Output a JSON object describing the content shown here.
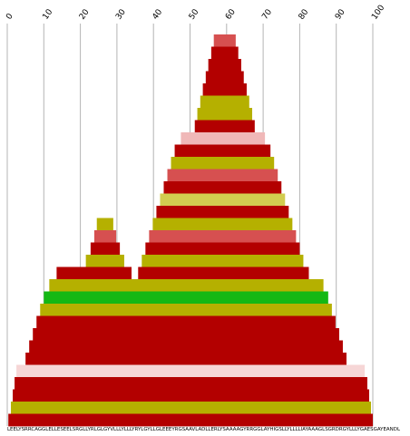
{
  "chart_data": {
    "type": "area",
    "title": "",
    "xlabel": "",
    "ylabel": "",
    "xlim": [
      0,
      100
    ],
    "x_ticks": [
      {
        "value": 0,
        "label": "0"
      },
      {
        "value": 10,
        "label": "10"
      },
      {
        "value": 20,
        "label": "20"
      },
      {
        "value": 30,
        "label": "30"
      },
      {
        "value": 40,
        "label": "40"
      },
      {
        "value": 50,
        "label": "50"
      },
      {
        "value": 60,
        "label": "60"
      },
      {
        "value": 70,
        "label": "70"
      },
      {
        "value": 80,
        "label": "80"
      },
      {
        "value": 90,
        "label": "90"
      },
      {
        "value": 100,
        "label": "100"
      }
    ],
    "grid": true,
    "legend": "none",
    "colors": {
      "red": "#b30000",
      "olive": "#b5b000",
      "salmon": "#d65050",
      "light_pink": "#f0b8b8",
      "pale_pink": "#f6d6d6",
      "khaki": "#d2cc50",
      "green": "#14b814",
      "grid": "#b4b4b4"
    },
    "sequence_label": "LEELYSRRCAGGLELLESEELSRGLLYRLGLGYVLLLYLLLYRYLGYLLGLEEEYRGSAAVLADLLERLYSAAAAGYRRGGLAYHIGSLLYLLLLIAYAAAGLSGRDRGYLLLYGAESGAYEANDL",
    "bands": [
      {
        "color": "#d65050",
        "segments": [
          [
            56.5,
            62.5
          ]
        ]
      },
      {
        "color": "#b30000",
        "segments": [
          [
            55.8,
            63.2
          ]
        ]
      },
      {
        "color": "#b30000",
        "segments": [
          [
            55.0,
            64.0
          ]
        ]
      },
      {
        "color": "#b30000",
        "segments": [
          [
            54.3,
            64.7
          ]
        ]
      },
      {
        "color": "#b30000",
        "segments": [
          [
            53.5,
            65.5
          ]
        ]
      },
      {
        "color": "#b5b000",
        "segments": [
          [
            52.8,
            66.2
          ]
        ]
      },
      {
        "color": "#b5b000",
        "segments": [
          [
            52.0,
            67.0
          ]
        ]
      },
      {
        "color": "#b30000",
        "segments": [
          [
            51.3,
            67.7
          ]
        ]
      },
      {
        "color": "#f0b8b8",
        "segments": [
          [
            47.5,
            70.5
          ]
        ]
      },
      {
        "color": "#b30000",
        "segments": [
          [
            45.8,
            72.0
          ]
        ]
      },
      {
        "color": "#b5b000",
        "segments": [
          [
            44.8,
            73.0
          ]
        ]
      },
      {
        "color": "#d65050",
        "segments": [
          [
            43.8,
            74.0
          ]
        ]
      },
      {
        "color": "#b30000",
        "segments": [
          [
            42.8,
            75.0
          ]
        ]
      },
      {
        "color": "#d2cc50",
        "segments": [
          [
            41.8,
            76.0
          ]
        ]
      },
      {
        "color": "#b30000",
        "segments": [
          [
            40.8,
            77.0
          ]
        ]
      },
      {
        "color": "#b5b000",
        "segments": [
          [
            24.5,
            29.0
          ],
          [
            39.8,
            78.0
          ]
        ]
      },
      {
        "color": "#d65050",
        "segments": [
          [
            23.8,
            29.8
          ],
          [
            38.8,
            79.0
          ]
        ]
      },
      {
        "color": "#b30000",
        "segments": [
          [
            22.8,
            30.8
          ],
          [
            37.8,
            80.0
          ]
        ]
      },
      {
        "color": "#b5b000",
        "segments": [
          [
            21.5,
            32.0
          ],
          [
            36.8,
            81.0
          ]
        ]
      },
      {
        "color": "#b30000",
        "segments": [
          [
            13.5,
            34.0
          ],
          [
            35.8,
            82.5
          ]
        ]
      },
      {
        "color": "#b5b000",
        "segments": [
          [
            11.5,
            86.5
          ]
        ]
      },
      {
        "color": "#14b814",
        "segments": [
          [
            10.0,
            87.8
          ]
        ]
      },
      {
        "color": "#b5b000",
        "segments": [
          [
            9.0,
            88.8
          ]
        ]
      },
      {
        "color": "#b30000",
        "segments": [
          [
            8.0,
            89.8
          ]
        ]
      },
      {
        "color": "#b30000",
        "segments": [
          [
            7.0,
            90.8
          ]
        ]
      },
      {
        "color": "#b30000",
        "segments": [
          [
            6.0,
            91.8
          ]
        ]
      },
      {
        "color": "#b30000",
        "segments": [
          [
            5.0,
            92.8
          ]
        ]
      },
      {
        "color": "#f6d6d6",
        "segments": [
          [
            2.5,
            97.8
          ]
        ]
      },
      {
        "color": "#b30000",
        "segments": [
          [
            2.0,
            98.5
          ]
        ]
      },
      {
        "color": "#b30000",
        "segments": [
          [
            1.5,
            99.0
          ]
        ]
      },
      {
        "color": "#b5b000",
        "segments": [
          [
            1.0,
            99.5
          ]
        ]
      },
      {
        "color": "#b30000",
        "segments": [
          [
            0.3,
            100.0
          ]
        ]
      }
    ]
  }
}
